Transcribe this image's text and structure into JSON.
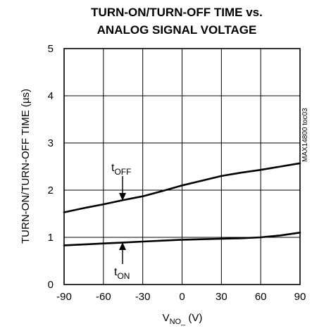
{
  "chart_data": {
    "type": "line",
    "title_line1": "TURN-ON/TURN-OFF TIME vs.",
    "title_line2": "ANALOG SIGNAL VOLTAGE",
    "ylabel": "TURN-ON/TURN-OFF TIME (µs)",
    "xlabel_main": "V",
    "xlabel_sub": "NO_",
    "xlabel_unit": " (V)",
    "watermark": "MAX14800 toc03",
    "xlim": [
      -90,
      90
    ],
    "ylim": [
      0,
      5
    ],
    "x_ticks": [
      -90,
      -60,
      -30,
      0,
      30,
      60,
      90
    ],
    "y_ticks": [
      0,
      1,
      2,
      3,
      4,
      5
    ],
    "grid": true,
    "series": [
      {
        "name_main": "t",
        "name_sub": "OFF",
        "x": [
          -90,
          -75,
          -60,
          -45,
          -30,
          -15,
          0,
          15,
          30,
          45,
          60,
          75,
          90
        ],
        "y": [
          1.53,
          1.62,
          1.7,
          1.79,
          1.87,
          1.98,
          2.1,
          2.2,
          2.3,
          2.37,
          2.43,
          2.5,
          2.57
        ]
      },
      {
        "name_main": "t",
        "name_sub": "ON",
        "x": [
          -90,
          -75,
          -60,
          -45,
          -30,
          -15,
          0,
          15,
          30,
          45,
          60,
          75,
          90
        ],
        "y": [
          0.83,
          0.85,
          0.87,
          0.89,
          0.91,
          0.93,
          0.95,
          0.96,
          0.97,
          0.98,
          1.0,
          1.04,
          1.1
        ]
      }
    ]
  }
}
